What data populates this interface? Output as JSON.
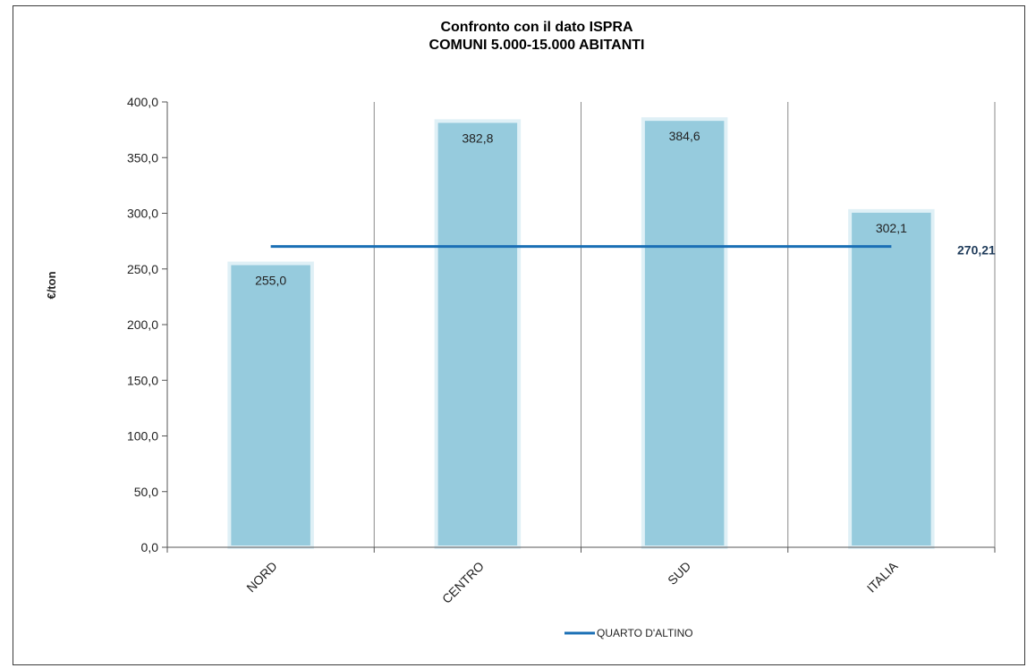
{
  "chart_data": {
    "type": "bar",
    "title_line1": "Confronto con il dato ISPRA",
    "title_line2": "COMUNI  5.000-15.000 ABITANTI",
    "ylabel": "€/ton",
    "xlabel": "",
    "categories": [
      "NORD",
      "CENTRO",
      "SUD",
      "ITALIA"
    ],
    "values": [
      255.0,
      382.8,
      384.6,
      302.1
    ],
    "value_labels": [
      "255,0",
      "382,8",
      "384,6",
      "302,1"
    ],
    "ylim": [
      0,
      400
    ],
    "yticks": [
      0,
      50,
      100,
      150,
      200,
      250,
      300,
      350,
      400
    ],
    "ytick_labels": [
      "0,0",
      "50,0",
      "100,0",
      "150,0",
      "200,0",
      "250,0",
      "300,0",
      "350,0",
      "400,0"
    ],
    "bar_color": "#96cbdd",
    "bar_border_color": "#dff0f6",
    "reference_line": {
      "name": "QUARTO D'ALTINO",
      "value": 270.21,
      "label": "270,21",
      "color": "#1a6fb5"
    },
    "grid": "vertical-category-separators",
    "legend_position": "bottom-center"
  }
}
